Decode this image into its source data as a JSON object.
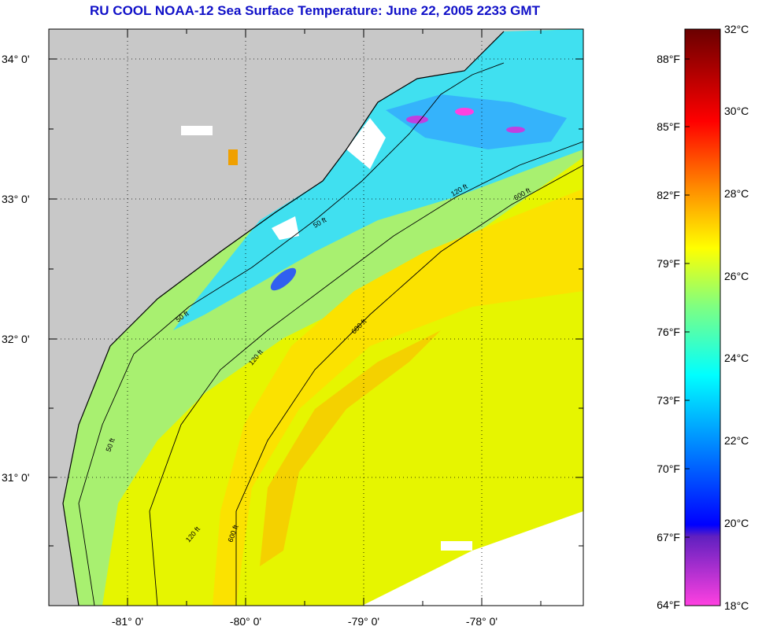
{
  "title": "RU COOL  NOAA-12  Sea Surface Temperature:  June 22, 2005 2233 GMT",
  "axes": {
    "lat_labels": [
      "34° 0'",
      "33° 0'",
      "32° 0'",
      "31° 0'"
    ],
    "lon_labels": [
      "-81° 0'",
      "-80° 0'",
      "-79° 0'",
      "-78° 0'"
    ]
  },
  "contour_labels": [
    "50 ft",
    "120 ft",
    "600 ft"
  ],
  "colorbar": {
    "fahrenheit_labels": [
      "88°F",
      "85°F",
      "82°F",
      "79°F",
      "76°F",
      "73°F",
      "70°F",
      "67°F",
      "64°F"
    ],
    "celsius_labels": [
      "32°C",
      "30°C",
      "28°C",
      "26°C",
      "24°C",
      "22°C",
      "20°C",
      "18°C"
    ],
    "colors": [
      "#7a0000",
      "#ff0000",
      "#ff8000",
      "#ffff00",
      "#80ff80",
      "#00ffff",
      "#0080ff",
      "#0000ff",
      "#8040c0",
      "#ff40ff"
    ]
  },
  "colors": {
    "land": "#c8c8c8",
    "water_warm": "#f4f000",
    "water_cool": "#a0ff60",
    "water_cold": "#40e8ff",
    "title": "#1010c8"
  }
}
